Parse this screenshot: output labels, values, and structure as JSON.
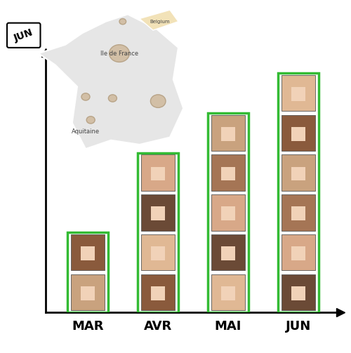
{
  "chart_data": {
    "type": "bar",
    "categories": [
      "MAR",
      "AVR",
      "MAI",
      "JUN"
    ],
    "values": [
      2,
      4,
      5,
      6
    ],
    "color": "#33bb33",
    "ylim": [
      0,
      6.5
    ],
    "yticks": [],
    "tick_labels": "x",
    "annotations": [
      "JUN",
      "Ile de France",
      "Belgium",
      "Aquitaine"
    ]
  }
}
